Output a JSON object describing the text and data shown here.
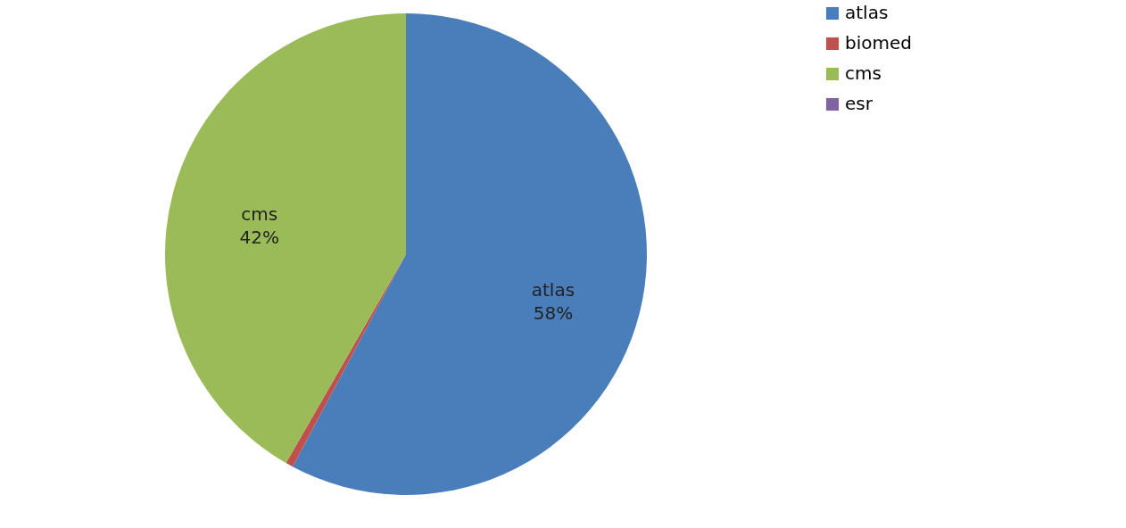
{
  "chart_data": {
    "type": "pie",
    "categories": [
      "atlas",
      "biomed",
      "cms",
      "esr"
    ],
    "values": [
      57.8,
      0.5,
      41.7,
      0
    ],
    "value_labels": [
      "58%",
      null,
      "42%",
      null
    ],
    "colors": [
      "#4a7ebb",
      "#c0504d",
      "#9bbb59",
      "#8064a2"
    ],
    "legend": "right"
  }
}
